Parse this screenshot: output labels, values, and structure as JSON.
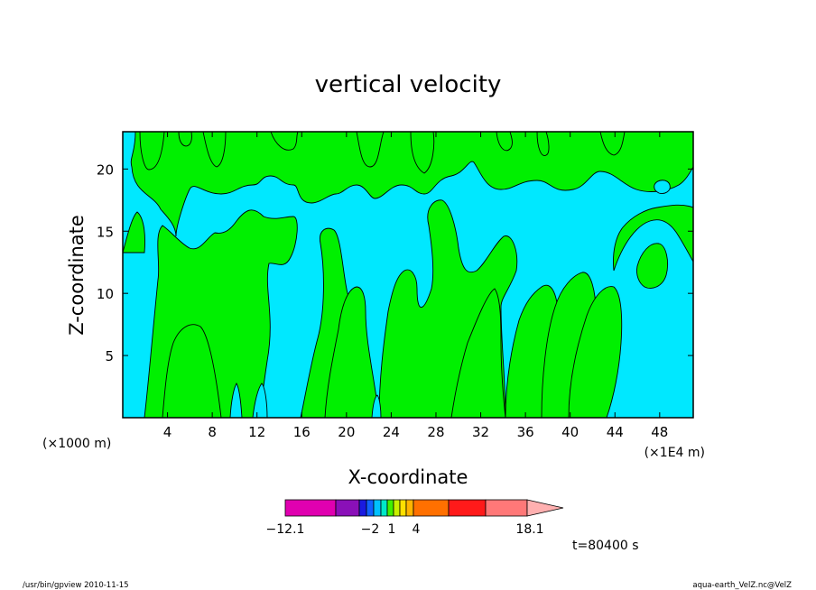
{
  "chart_data": {
    "type": "heatmap",
    "title": "vertical velocity",
    "xlabel": "X-coordinate",
    "ylabel": "Z-coordinate",
    "x_unit_left": "(×1000 m)",
    "x_unit_right": "(×1E4 m)",
    "xlim": [
      0,
      51
    ],
    "ylim": [
      0,
      23
    ],
    "x_ticks": [
      "4",
      "8",
      "12",
      "16",
      "20",
      "24",
      "28",
      "32",
      "36",
      "40",
      "44",
      "48"
    ],
    "y_ticks": [
      "5",
      "10",
      "15",
      "20"
    ],
    "time_label": "t=80400 s",
    "colors": {
      "negative": "#00e8ff",
      "positive": "#00f000",
      "contour": "#000000"
    },
    "colorbar": {
      "colors": [
        "#e000b0",
        "#8a10b8",
        "#1a1ae0",
        "#1060ff",
        "#00c0ff",
        "#00e8c8",
        "#40f000",
        "#c8f000",
        "#ffe000",
        "#ffb400",
        "#ff7000",
        "#ff1a1a",
        "#ff7878",
        "#ffb0b0"
      ],
      "labels": [
        "−12.1",
        "−2",
        "1",
        "4",
        "18.1"
      ]
    }
  },
  "footer": {
    "left": "/usr/bin/gpview   2010-11-15",
    "right": "aqua-earth_VelZ.nc@VelZ"
  }
}
